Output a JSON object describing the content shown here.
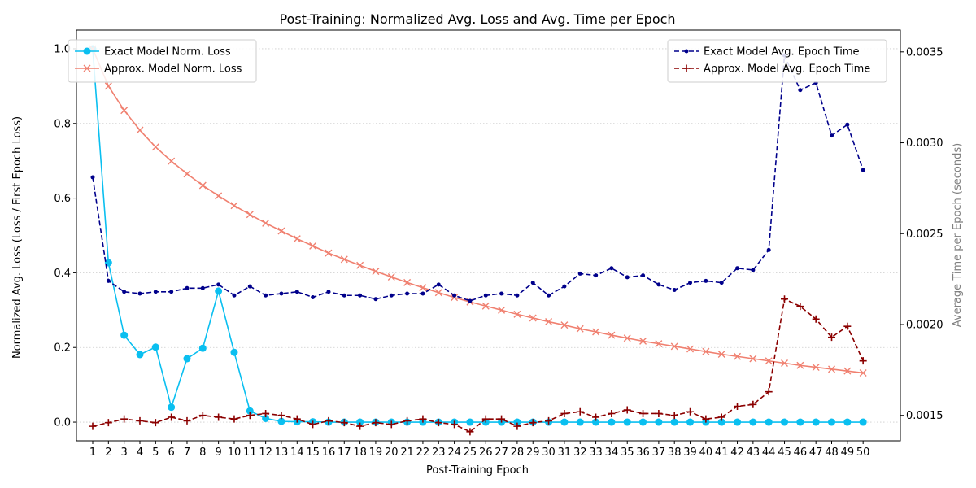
{
  "chart_data": {
    "type": "line",
    "title": "Post-Training: Normalized Avg. Loss and Avg. Time per Epoch",
    "xlabel": "Post-Training Epoch",
    "ylabel_left": "Normalized Avg. Loss (Loss / First Epoch Loss)",
    "ylabel_right": "Average Time per Epoch (seconds)",
    "x": [
      1,
      2,
      3,
      4,
      5,
      6,
      7,
      8,
      9,
      10,
      11,
      12,
      13,
      14,
      15,
      16,
      17,
      18,
      19,
      20,
      21,
      22,
      23,
      24,
      25,
      26,
      27,
      28,
      29,
      30,
      31,
      32,
      33,
      34,
      35,
      36,
      37,
      38,
      39,
      40,
      41,
      42,
      43,
      44,
      45,
      46,
      47,
      48,
      49,
      50
    ],
    "ylim_left": [
      -0.05,
      1.05
    ],
    "ylim_right": [
      0.00136,
      0.00362
    ],
    "yticks_left": [
      "0.0",
      "0.2",
      "0.4",
      "0.6",
      "0.8",
      "1.0"
    ],
    "yticks_right": [
      "0.0015",
      "0.0020",
      "0.0025",
      "0.0030",
      "0.0035"
    ],
    "grid": "horizontal dotted",
    "series_left": [
      {
        "name": "Exact Model Norm. Loss",
        "color": "#0abff0",
        "marker": "circle",
        "values": [
          1.0,
          0.427,
          0.233,
          0.181,
          0.201,
          0.04,
          0.17,
          0.198,
          0.351,
          0.187,
          0.03,
          0.01,
          0.002,
          0.001,
          0.001,
          0.0,
          0.0,
          0.0,
          0.0,
          0.0,
          0.0,
          0.0,
          0.0,
          0.0,
          0.0,
          0.0,
          0.0,
          0.0,
          0.0,
          0.0,
          0.0,
          0.0,
          0.0,
          0.0,
          0.0,
          0.0,
          0.0,
          0.0,
          0.0,
          0.0,
          0.0,
          0.0,
          0.0,
          0.0,
          0.0,
          0.0,
          0.0,
          0.0,
          0.0,
          0.0
        ]
      },
      {
        "name": "Approx. Model Norm. Loss",
        "color": "#f08070",
        "marker": "x",
        "values": [
          1.0,
          0.9,
          0.835,
          0.782,
          0.737,
          0.699,
          0.665,
          0.634,
          0.606,
          0.58,
          0.556,
          0.533,
          0.512,
          0.491,
          0.472,
          0.453,
          0.436,
          0.42,
          0.404,
          0.389,
          0.374,
          0.36,
          0.347,
          0.334,
          0.322,
          0.311,
          0.3,
          0.289,
          0.279,
          0.269,
          0.26,
          0.25,
          0.242,
          0.233,
          0.225,
          0.217,
          0.21,
          0.203,
          0.196,
          0.189,
          0.182,
          0.176,
          0.17,
          0.164,
          0.158,
          0.152,
          0.147,
          0.142,
          0.137,
          0.132
        ]
      }
    ],
    "series_right": [
      {
        "name": "Exact Model Avg. Epoch Time",
        "color": "#00008b",
        "marker": "dot",
        "values": [
          0.00281,
          0.00224,
          0.00218,
          0.00217,
          0.00218,
          0.00218,
          0.0022,
          0.0022,
          0.00222,
          0.00216,
          0.00221,
          0.00216,
          0.00217,
          0.00218,
          0.00215,
          0.00218,
          0.00216,
          0.00216,
          0.00214,
          0.00216,
          0.00217,
          0.00217,
          0.00222,
          0.00216,
          0.00213,
          0.00216,
          0.00217,
          0.00216,
          0.00223,
          0.00216,
          0.00221,
          0.00228,
          0.00227,
          0.00231,
          0.00226,
          0.00227,
          0.00222,
          0.00219,
          0.00223,
          0.00224,
          0.00223,
          0.00231,
          0.0023,
          0.00241,
          0.00348,
          0.00329,
          0.00333,
          0.00304,
          0.0031,
          0.00285
        ]
      },
      {
        "name": "Approx. Model Avg. Epoch Time",
        "color": "#8b0000",
        "marker": "plus",
        "values": [
          0.00144,
          0.00146,
          0.00148,
          0.00147,
          0.00146,
          0.00149,
          0.00147,
          0.0015,
          0.00149,
          0.00148,
          0.0015,
          0.00151,
          0.0015,
          0.00148,
          0.00145,
          0.00147,
          0.00146,
          0.00144,
          0.00146,
          0.00145,
          0.00147,
          0.00148,
          0.00146,
          0.00145,
          0.00141,
          0.00148,
          0.00148,
          0.00144,
          0.00146,
          0.00147,
          0.00151,
          0.00152,
          0.00149,
          0.00151,
          0.00153,
          0.00151,
          0.00151,
          0.0015,
          0.00152,
          0.00148,
          0.00149,
          0.00155,
          0.00156,
          0.00163,
          0.00214,
          0.0021,
          0.00203,
          0.00193,
          0.00199,
          0.0018
        ]
      }
    ],
    "legend_left": "top-left",
    "legend_right": "top-right"
  }
}
